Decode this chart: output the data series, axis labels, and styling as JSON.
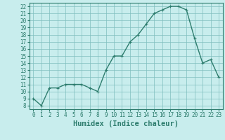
{
  "x": [
    0,
    1,
    2,
    3,
    4,
    5,
    6,
    7,
    8,
    9,
    10,
    11,
    12,
    13,
    14,
    15,
    16,
    17,
    18,
    19,
    20,
    21,
    22,
    23
  ],
  "y": [
    9,
    8,
    10.5,
    10.5,
    11,
    11,
    11,
    10.5,
    10,
    13,
    15,
    15,
    17,
    18,
    19.5,
    21,
    21.5,
    22,
    22,
    21.5,
    17.5,
    14,
    14.5,
    12
  ],
  "line_color": "#2e7d6e",
  "marker": "+",
  "marker_size": 3,
  "bg_color": "#c8eded",
  "grid_color": "#7fbfbf",
  "xlabel": "Humidex (Indice chaleur)",
  "xlim": [
    -0.5,
    23.5
  ],
  "ylim": [
    7.5,
    22.5
  ],
  "yticks": [
    8,
    9,
    10,
    11,
    12,
    13,
    14,
    15,
    16,
    17,
    18,
    19,
    20,
    21,
    22
  ],
  "xticks": [
    0,
    1,
    2,
    3,
    4,
    5,
    6,
    7,
    8,
    9,
    10,
    11,
    12,
    13,
    14,
    15,
    16,
    17,
    18,
    19,
    20,
    21,
    22,
    23
  ],
  "tick_fontsize": 5.5,
  "label_fontsize": 7.5
}
